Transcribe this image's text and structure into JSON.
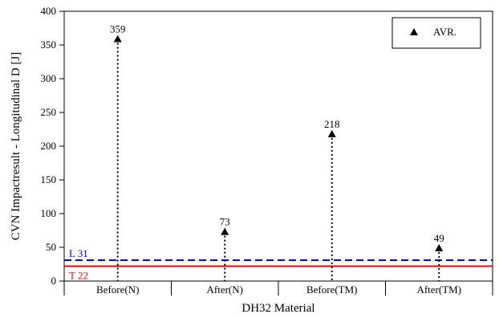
{
  "chart_data": {
    "type": "scatter",
    "categories": [
      "Before(N)",
      "After(N)",
      "Before(TM)",
      "After(TM)"
    ],
    "values": [
      359,
      73,
      218,
      49
    ],
    "data_labels": [
      "359",
      "73",
      "218",
      "49"
    ],
    "xlabel": "DH32 Material",
    "ylabel": "CVN Impactresult - Longitudinal D [J]",
    "ylim": [
      0,
      400
    ],
    "yticks": [
      0,
      50,
      100,
      150,
      200,
      250,
      300,
      350,
      400
    ],
    "grid": false,
    "legend": {
      "entries": [
        "AVR."
      ],
      "placement": "top-right"
    },
    "drop_lines": {
      "style": "dotted",
      "color": "#000000"
    },
    "reference_lines": [
      {
        "label": "L  31",
        "value": 31,
        "color": "#0000ff",
        "style": "dashed"
      },
      {
        "label": "T  22",
        "value": 22,
        "color": "#ff0000",
        "style": "solid"
      }
    ]
  }
}
